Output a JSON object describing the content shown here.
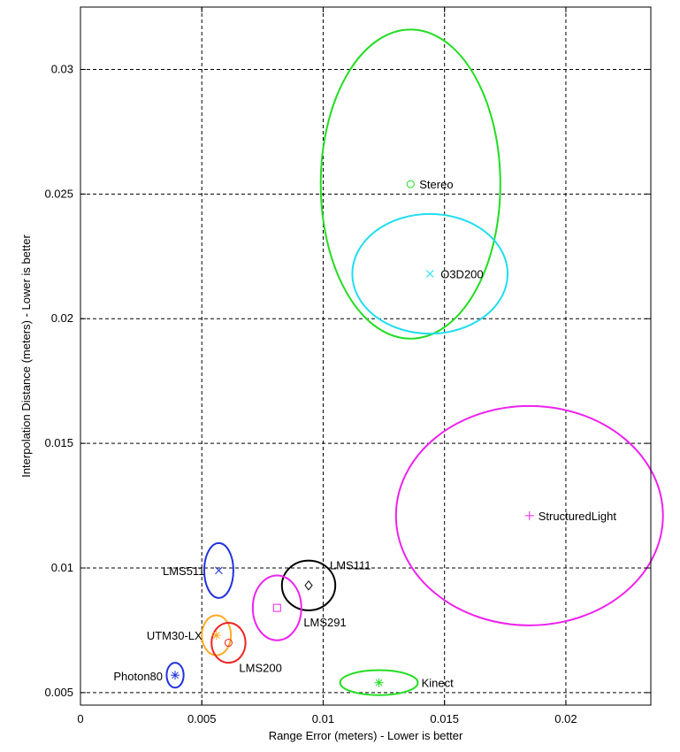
{
  "chart_data": {
    "type": "scatter",
    "title": "",
    "xlabel": "Range Error (meters) - Lower is better",
    "ylabel": "Interpolation Distance (meters) - Lower is better",
    "xlim": [
      0,
      0.0235
    ],
    "ylim": [
      0.0045,
      0.0325
    ],
    "xticks": [
      0,
      0.005,
      0.01,
      0.015,
      0.02
    ],
    "xtick_labels": [
      "0",
      "0.005",
      "0.01",
      "0.015",
      "0.02"
    ],
    "yticks": [
      0.005,
      0.01,
      0.015,
      0.02,
      0.025,
      0.03
    ],
    "ytick_labels": [
      "0.005",
      "0.01",
      "0.015",
      "0.02",
      "0.025",
      "0.03"
    ],
    "grid": true,
    "legend": "none",
    "annotation": "Each sensor: marker at mean, ellipse showing spread",
    "series": [
      {
        "name": "Stereo",
        "x": 0.0136,
        "y": 0.0254,
        "rx": 0.0037,
        "ry": 0.0062,
        "color": "#22dd22",
        "marker": "circle"
      },
      {
        "name": "O3D200",
        "x": 0.0144,
        "y": 0.0218,
        "rx": 0.0032,
        "ry": 0.0024,
        "color": "#22ddee",
        "marker": "x"
      },
      {
        "name": "StructuredLight",
        "x": 0.0185,
        "y": 0.0121,
        "rx": 0.0055,
        "ry": 0.0044,
        "color": "#ee22ee",
        "marker": "plus"
      },
      {
        "name": "LMS511",
        "x": 0.0057,
        "y": 0.0099,
        "rx": 0.0006,
        "ry": 0.0011,
        "color": "#2233dd",
        "marker": "x"
      },
      {
        "name": "LMS111",
        "x": 0.0094,
        "y": 0.0093,
        "rx": 0.0011,
        "ry": 0.001,
        "color": "#000000",
        "marker": "diamond"
      },
      {
        "name": "LMS291",
        "x": 0.0081,
        "y": 0.0084,
        "rx": 0.001,
        "ry": 0.0013,
        "color": "#ee22ee",
        "marker": "square"
      },
      {
        "name": "UTM30-LX",
        "x": 0.0056,
        "y": 0.0073,
        "rx": 0.0006,
        "ry": 0.0008,
        "color": "#ffaa22",
        "marker": "star"
      },
      {
        "name": "LMS200",
        "x": 0.0061,
        "y": 0.007,
        "rx": 0.0007,
        "ry": 0.0008,
        "color": "#ee2222",
        "marker": "circle"
      },
      {
        "name": "Photon80",
        "x": 0.0039,
        "y": 0.0057,
        "rx": 0.00035,
        "ry": 0.0005,
        "color": "#2233dd",
        "marker": "star"
      },
      {
        "name": "Kinect",
        "x": 0.0123,
        "y": 0.0054,
        "rx": 0.0016,
        "ry": 0.0005,
        "color": "#22dd22",
        "marker": "star"
      }
    ]
  }
}
